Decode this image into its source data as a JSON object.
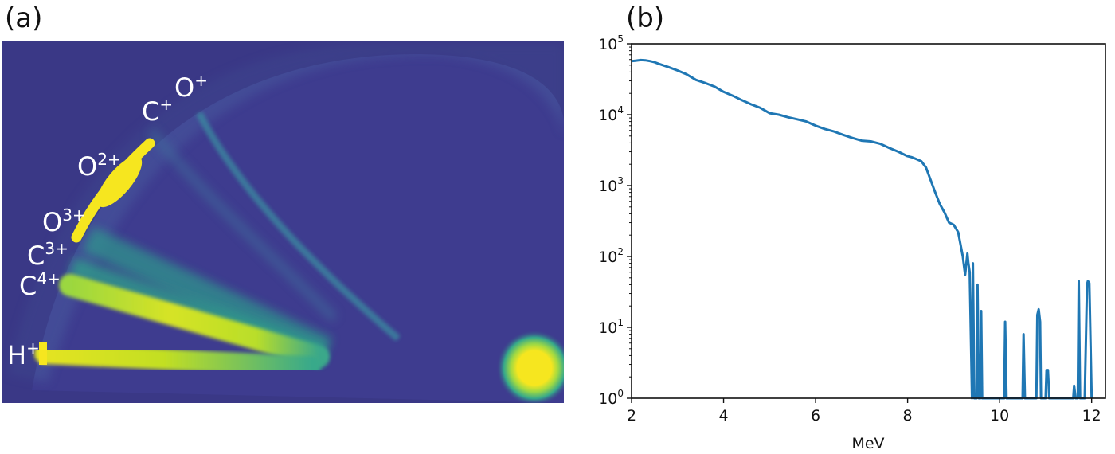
{
  "panel_a": {
    "label": "(a)",
    "ions": [
      {
        "base": "O",
        "charge": "+"
      },
      {
        "base": "C",
        "charge": "+"
      },
      {
        "base": "O",
        "charge": "2+"
      },
      {
        "base": "O",
        "charge": "3+"
      },
      {
        "base": "C",
        "charge": "3+"
      },
      {
        "base": "C",
        "charge": "4+"
      },
      {
        "base": "H",
        "charge": "+"
      }
    ],
    "colors": {
      "background": "#3b3a8c",
      "bright": "#f6e61f",
      "mid": "#2ca58a",
      "edge": "#3a6f9a"
    }
  },
  "panel_b": {
    "label": "(b)"
  },
  "chart_data": {
    "type": "line",
    "title": "",
    "xlabel": "MeV",
    "ylabel": "",
    "xlim": [
      2.0,
      12.3
    ],
    "ylim": [
      1,
      100000
    ],
    "yscale": "log",
    "xticks": [
      2,
      4,
      6,
      8,
      10,
      12
    ],
    "yticks": [
      {
        "base": "10",
        "exp": "0",
        "value": 1
      },
      {
        "base": "10",
        "exp": "1",
        "value": 10
      },
      {
        "base": "10",
        "exp": "2",
        "value": 100
      },
      {
        "base": "10",
        "exp": "3",
        "value": 1000
      },
      {
        "base": "10",
        "exp": "4",
        "value": 10000
      },
      {
        "base": "10",
        "exp": "5",
        "value": 100000
      }
    ],
    "grid": false,
    "line_color": "#1f77b4",
    "series": [
      {
        "x": [
          2.0,
          2.1,
          2.2,
          2.3,
          2.4,
          2.5,
          2.6,
          2.8,
          3.0,
          3.2,
          3.4,
          3.6,
          3.8,
          4.0,
          4.2,
          4.4,
          4.6,
          4.8,
          5.0,
          5.2,
          5.4,
          5.6,
          5.8,
          6.0,
          6.2,
          6.4,
          6.6,
          6.8,
          7.0,
          7.2,
          7.4,
          7.6,
          7.8,
          8.0,
          8.1,
          8.2,
          8.3,
          8.4,
          8.5,
          8.6,
          8.7,
          8.8,
          8.9,
          9.0,
          9.1,
          9.2,
          9.25,
          9.3,
          9.32,
          9.35,
          9.4,
          9.42,
          9.45,
          9.5,
          9.52,
          9.55,
          9.58,
          9.6,
          9.62,
          9.65,
          9.7,
          9.75,
          9.8,
          9.9,
          10.0,
          10.1,
          10.12,
          10.15,
          10.2,
          10.5,
          10.52,
          10.55,
          10.6,
          10.8,
          10.82,
          10.85,
          10.88,
          10.9,
          10.95,
          11.0,
          11.02,
          11.05,
          11.08,
          11.1,
          11.6,
          11.62,
          11.65,
          11.7,
          11.72,
          11.75,
          11.8,
          11.85,
          11.9,
          11.92,
          11.95,
          12.0
        ],
        "y": [
          57000,
          58000,
          59000,
          58500,
          57000,
          55000,
          52000,
          47000,
          42000,
          37000,
          31000,
          28000,
          25000,
          21000,
          18500,
          16000,
          14000,
          12500,
          10500,
          10000,
          9200,
          8600,
          8000,
          7000,
          6300,
          5800,
          5200,
          4700,
          4300,
          4200,
          3900,
          3400,
          3000,
          2600,
          2500,
          2350,
          2200,
          1800,
          1200,
          800,
          550,
          420,
          300,
          280,
          220,
          100,
          55,
          110,
          80,
          60,
          1,
          80,
          1,
          1,
          40,
          1,
          1,
          17,
          1,
          1,
          1,
          1,
          1,
          1,
          1,
          1,
          12,
          1,
          1,
          1,
          8,
          1,
          1,
          1,
          15,
          18,
          12,
          1,
          1,
          1,
          2.5,
          2.5,
          1,
          1,
          1,
          1.5,
          1,
          1,
          45,
          1,
          1,
          1,
          40,
          45,
          42,
          1
        ]
      }
    ]
  }
}
